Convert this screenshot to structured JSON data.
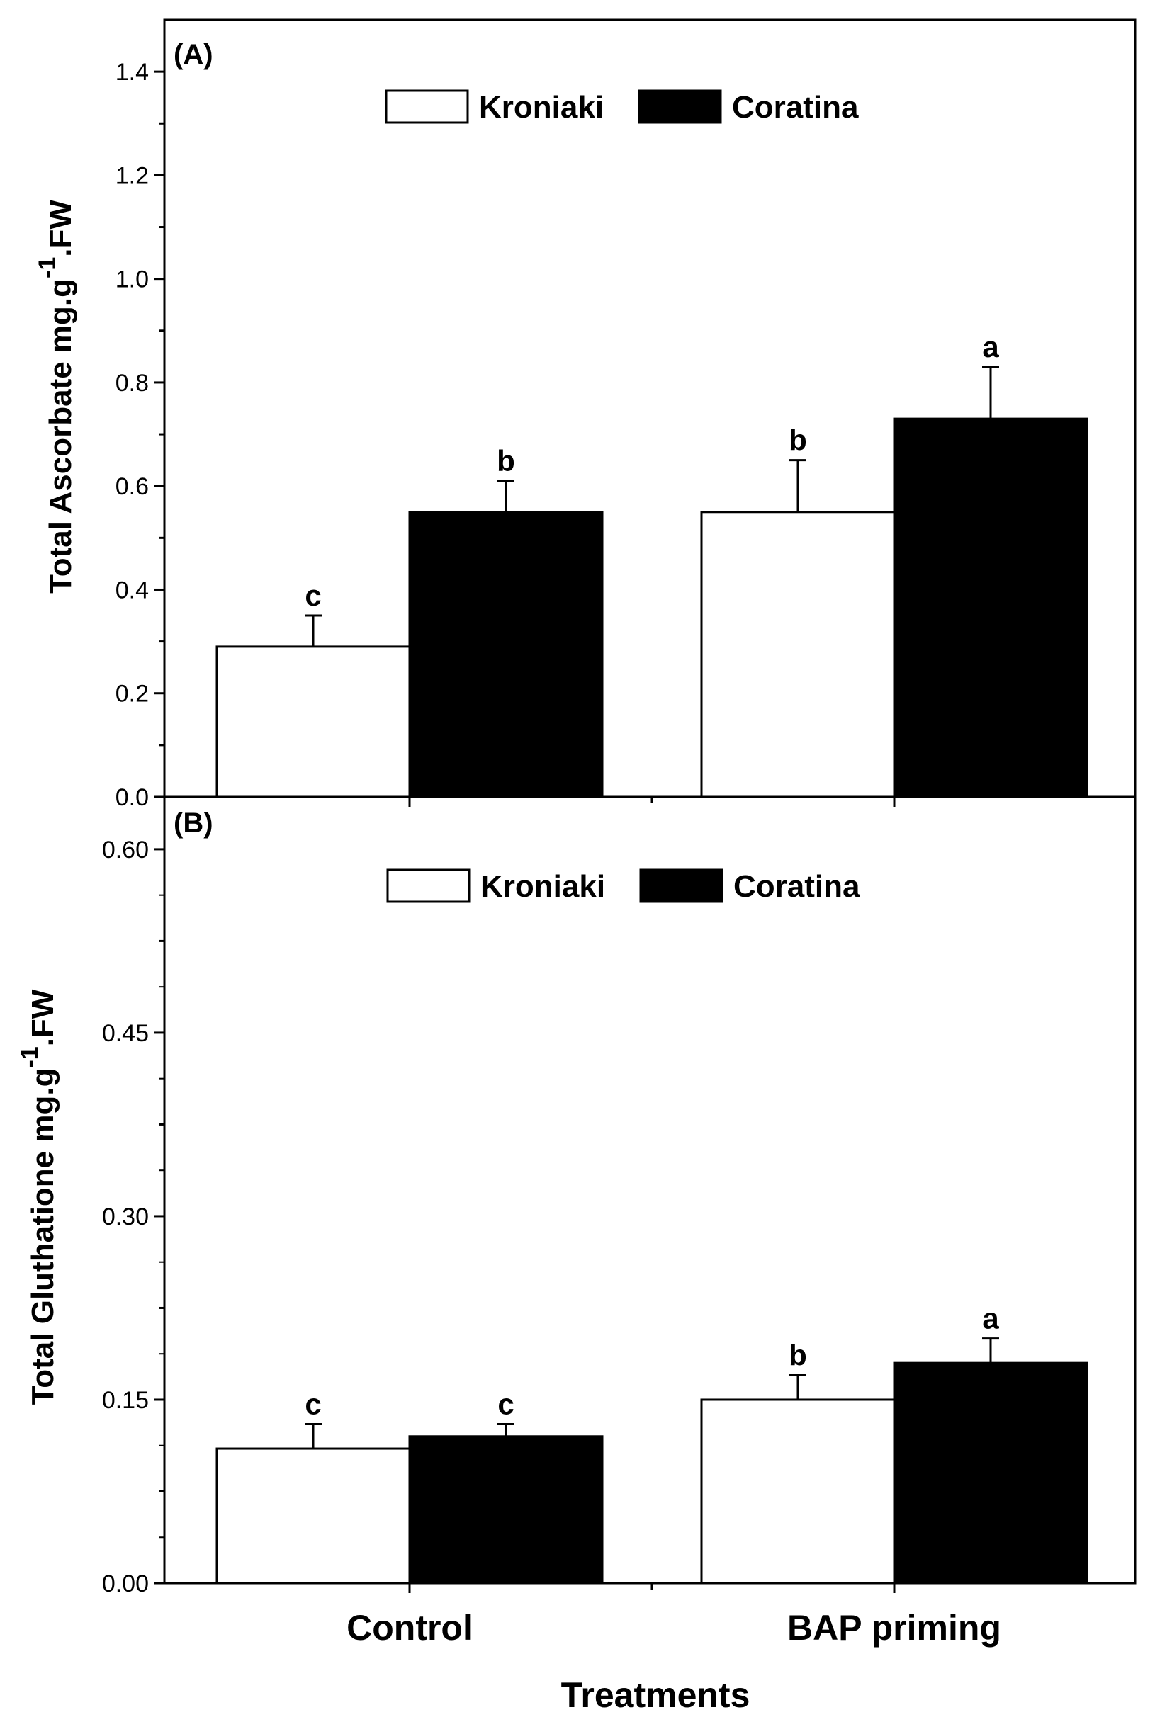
{
  "chart_data": [
    {
      "type": "bar",
      "panel": "(A)",
      "ylabel": "Total Ascorbate mg.g",
      "ylabel_sup": "-1",
      "ylabel_suffix": ".FW",
      "ylim": [
        0,
        1.5
      ],
      "yticks": [
        0.0,
        0.2,
        0.4,
        0.6,
        0.8,
        1.0,
        1.2,
        1.4
      ],
      "ytick_labels": [
        "0.0",
        "0.2",
        "0.4",
        "0.6",
        "0.8",
        "1.0",
        "1.2",
        "1.4"
      ],
      "categories": [
        "Control",
        "BAP priming"
      ],
      "series": [
        {
          "name": "Kroniaki",
          "color": "#ffffff",
          "values": [
            0.29,
            0.55
          ],
          "errors": [
            0.06,
            0.1
          ],
          "labels": [
            "c",
            "b"
          ]
        },
        {
          "name": "Coratina",
          "color": "#000000",
          "values": [
            0.55,
            0.73
          ],
          "errors": [
            0.06,
            0.1
          ],
          "labels": [
            "b",
            "a"
          ]
        }
      ]
    },
    {
      "type": "bar",
      "panel": "(B)",
      "ylabel": "Total Gluthatione mg.g",
      "ylabel_sup": "-1",
      "ylabel_suffix": ".FW",
      "ylim": [
        0,
        0.6428
      ],
      "yticks": [
        0.0,
        0.15,
        0.3,
        0.45,
        0.6
      ],
      "ytick_labels": [
        "0.00",
        "0.15",
        "0.30",
        "0.45",
        "0.60"
      ],
      "categories": [
        "Control",
        "BAP priming"
      ],
      "series": [
        {
          "name": "Kroniaki",
          "color": "#ffffff",
          "values": [
            0.11,
            0.15
          ],
          "errors": [
            0.02,
            0.02
          ],
          "labels": [
            "c",
            "b"
          ]
        },
        {
          "name": "Coratina",
          "color": "#000000",
          "values": [
            0.12,
            0.18
          ],
          "errors": [
            0.01,
            0.02
          ],
          "labels": [
            "c",
            "a"
          ]
        }
      ]
    }
  ],
  "xlabel": "Treatments",
  "categories": [
    "Control",
    "BAP priming"
  ]
}
